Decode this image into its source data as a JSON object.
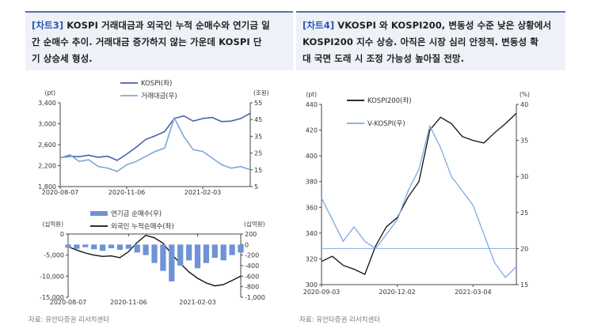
{
  "left_panel": {
    "title_tag": "[차트3]",
    "title_line1": " KOSPI 거래대금과 외국인 누적 순매수와 연기금 일",
    "title_line2": "간 순매수 추이. 거래대금 증가하지 않는 가운데 KOSPI 단",
    "title_line3": "기 상승세 형성.",
    "source": "자료:  유안타증권 리서치센터"
  },
  "right_panel": {
    "title_tag": "[차트4]",
    "title_line1": " VKOSPI 와 KOSPI200, 변동성 수준 낮은 상황에서",
    "title_line2": "KOSPI200 지수 상승. 아직은 시장 심리 안정적. 변동성 확",
    "title_line3": "대 국면 도래 시 조정 가능성 높아질 전망.",
    "source": "자료:  유안타증권 리서치센터"
  },
  "colors": {
    "kospi": "#4a5fb0",
    "turnover": "#7ba7d9",
    "pension": "#6f93d4",
    "foreign": "#111111",
    "kospi200": "#111111",
    "vkospi": "#7ea9e0",
    "refline": "#7ea9e0"
  },
  "chart_data": [
    {
      "type": "line",
      "unit_left": "(pt)",
      "unit_right": "(조원)",
      "x_ticks": [
        "2020-08-07",
        "2020-11-06",
        "2021-02-03"
      ],
      "y_left_ticks": [
        "3,400",
        "3,000",
        "2,600",
        "2,200",
        "1,800"
      ],
      "y_right_ticks": [
        "55",
        "45",
        "35",
        "25",
        "15",
        "5"
      ],
      "ylim_left": [
        1800,
        3400
      ],
      "ylim_right": [
        5,
        55
      ],
      "legend": [
        "KOSPI(좌)",
        "거래대금(우)"
      ],
      "x": [
        "2020-08-07",
        "2020-08-21",
        "2020-09-04",
        "2020-09-18",
        "2020-10-02",
        "2020-10-16",
        "2020-10-30",
        "2020-11-06",
        "2020-11-20",
        "2020-12-04",
        "2020-12-18",
        "2021-01-01",
        "2021-01-08",
        "2021-01-15",
        "2021-01-22",
        "2021-02-03",
        "2021-02-17",
        "2021-03-03",
        "2021-03-17",
        "2021-03-31",
        "2021-04-14"
      ],
      "series": [
        {
          "name": "KOSPI(좌)",
          "axis": "left",
          "values": [
            2350,
            2380,
            2370,
            2400,
            2360,
            2380,
            2300,
            2420,
            2550,
            2700,
            2770,
            2850,
            3100,
            3150,
            3050,
            3100,
            3120,
            3040,
            3050,
            3100,
            3200
          ]
        },
        {
          "name": "거래대금(우)",
          "axis": "right",
          "values": [
            22,
            24,
            20,
            21,
            17,
            16,
            14,
            18,
            20,
            23,
            26,
            28,
            46,
            35,
            27,
            26,
            22,
            18,
            16,
            17,
            15
          ]
        }
      ]
    },
    {
      "type": "bar",
      "unit_left": "(십억원)",
      "unit_right": "(십억원)",
      "x_ticks": [
        "2020-08-07",
        "2020-11-06",
        "2021-02-03"
      ],
      "y_left_ticks": [
        "0",
        "-5,000",
        "-10,000",
        "-15,000"
      ],
      "y_right_ticks": [
        "200",
        "0",
        "-200",
        "-400",
        "-600",
        "-800",
        "-1,000"
      ],
      "ylim_left": [
        -15000,
        0
      ],
      "ylim_right": [
        -1000,
        200
      ],
      "legend": [
        "연기금 순매수(우)",
        "외국인 누적순매수(좌)"
      ],
      "x": [
        "2020-08-07",
        "2020-08-21",
        "2020-09-04",
        "2020-09-18",
        "2020-10-02",
        "2020-10-16",
        "2020-10-30",
        "2020-11-06",
        "2020-11-20",
        "2020-12-04",
        "2020-12-18",
        "2021-01-01",
        "2021-01-08",
        "2021-01-15",
        "2021-01-22",
        "2021-02-03",
        "2021-02-17",
        "2021-03-03",
        "2021-03-17",
        "2021-03-31",
        "2021-04-14"
      ],
      "series": [
        {
          "name": "외국인 누적순매수(좌)",
          "axis": "left",
          "kind": "line",
          "values": [
            -3000,
            -3800,
            -4500,
            -5000,
            -5300,
            -5200,
            -5600,
            -4200,
            -2000,
            -300,
            -900,
            -2200,
            -4800,
            -7000,
            -9000,
            -10500,
            -11600,
            -12300,
            -12000,
            -11000,
            -10000
          ]
        },
        {
          "name": "연기금 순매수(우)",
          "axis": "right",
          "kind": "bar",
          "values": [
            -60,
            -80,
            -50,
            -90,
            -120,
            -70,
            -100,
            -80,
            -150,
            -200,
            -350,
            -500,
            -700,
            -400,
            -300,
            -450,
            -350,
            -250,
            -300,
            -200,
            -150
          ]
        }
      ]
    },
    {
      "type": "line",
      "unit_left": "(pt)",
      "unit_right": "(%)",
      "x_ticks": [
        "2020-09-03",
        "2020-12-02",
        "2021-03-04"
      ],
      "y_left_ticks": [
        "440",
        "420",
        "400",
        "380",
        "360",
        "340",
        "320",
        "300"
      ],
      "y_right_ticks": [
        "40",
        "35",
        "30",
        "25",
        "20",
        "15"
      ],
      "ylim_left": [
        300,
        440
      ],
      "ylim_right": [
        15,
        40
      ],
      "reference_line_right": 20,
      "legend": [
        "KOSPI200(좌)",
        "V-KOSPI(우)"
      ],
      "x": [
        "2020-09-03",
        "2020-09-17",
        "2020-10-01",
        "2020-10-15",
        "2020-10-29",
        "2020-11-12",
        "2020-11-26",
        "2020-12-02",
        "2020-12-16",
        "2020-12-30",
        "2021-01-13",
        "2021-01-27",
        "2021-02-10",
        "2021-02-24",
        "2021-03-04",
        "2021-03-18",
        "2021-04-01",
        "2021-04-15",
        "2021-04-29"
      ],
      "series": [
        {
          "name": "KOSPI200(좌)",
          "axis": "left",
          "values": [
            318,
            322,
            315,
            312,
            308,
            330,
            345,
            352,
            368,
            380,
            420,
            430,
            425,
            415,
            412,
            410,
            418,
            425,
            433
          ]
        },
        {
          "name": "V-KOSPI(우)",
          "axis": "right",
          "values": [
            27,
            24,
            21,
            23,
            21,
            20,
            22,
            24,
            28,
            31,
            37,
            34,
            30,
            28,
            26,
            22,
            18,
            16,
            17.5
          ]
        }
      ]
    }
  ]
}
